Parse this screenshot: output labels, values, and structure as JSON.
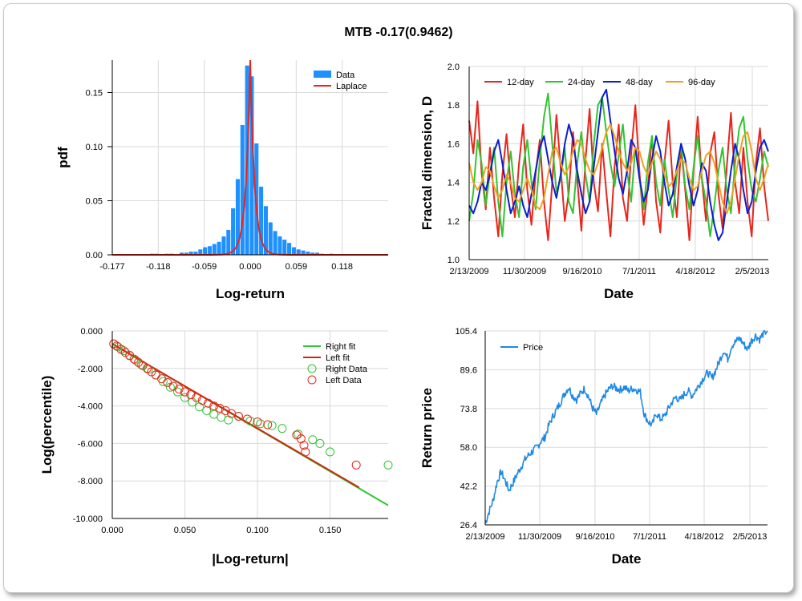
{
  "title": "MTB -0.17(0.9462)",
  "chart_data": [
    {
      "id": "pdf",
      "type": "bar",
      "xlabel": "Log-return",
      "ylabel": "pdf",
      "xlim": [
        -0.177,
        0.177
      ],
      "ylim": [
        0,
        0.18
      ],
      "xticks": [
        "-0.177",
        "-0.118",
        "-0.059",
        "0.000",
        "0.059",
        "0.118"
      ],
      "xtick_values": [
        -0.177,
        -0.118,
        -0.059,
        0.0,
        0.059,
        0.118
      ],
      "yticks": [
        "0.00",
        "0.05",
        "0.10",
        "0.15"
      ],
      "ytick_values": [
        0,
        0.05,
        0.1,
        0.15
      ],
      "legend": [
        "Data",
        "Laplace"
      ],
      "colors": {
        "data": "#1e90ff",
        "laplace": "#e8261c"
      },
      "bars": {
        "x": [
          -0.126,
          -0.12,
          -0.107,
          -0.101,
          -0.088,
          -0.082,
          -0.076,
          -0.07,
          -0.064,
          -0.058,
          -0.052,
          -0.046,
          -0.04,
          -0.034,
          -0.028,
          -0.022,
          -0.016,
          -0.01,
          -0.004,
          0.002,
          0.008,
          0.014,
          0.02,
          0.026,
          0.032,
          0.038,
          0.044,
          0.05,
          0.056,
          0.062,
          0.068,
          0.074,
          0.08,
          0.086,
          0.092,
          0.104
        ],
        "values": [
          0.001,
          0.001,
          0.001,
          0.001,
          0.002,
          0.002,
          0.003,
          0.003,
          0.005,
          0.007,
          0.008,
          0.01,
          0.012,
          0.017,
          0.023,
          0.043,
          0.07,
          0.12,
          0.175,
          0.165,
          0.103,
          0.063,
          0.045,
          0.03,
          0.022,
          0.017,
          0.014,
          0.011,
          0.007,
          0.005,
          0.004,
          0.003,
          0.002,
          0.002,
          0.001,
          0.001
        ],
        "width": 0.0052
      },
      "laplace": {
        "mu": 0.0,
        "peak": 0.18,
        "b": 0.0056
      }
    },
    {
      "id": "fractal",
      "type": "line",
      "xlabel": "Date",
      "ylabel": "Fractal dimension, D",
      "ylim": [
        1.0,
        2.0
      ],
      "xticks": [
        "2/13/2009",
        "11/30/2009",
        "9/16/2010",
        "7/1/2011",
        "4/18/2012",
        "2/5/2013"
      ],
      "yticks": [
        "1.0",
        "1.2",
        "1.4",
        "1.6",
        "1.8",
        "2.0"
      ],
      "ytick_values": [
        1.0,
        1.2,
        1.4,
        1.6,
        1.8,
        2.0
      ],
      "x_range_years": [
        2009.12,
        2013.43
      ],
      "series": [
        {
          "name": "12-day",
          "color": "#e8261c",
          "values": [
            1.72,
            1.55,
            1.82,
            1.45,
            1.26,
            1.58,
            1.32,
            1.12,
            1.44,
            1.65,
            1.38,
            1.22,
            1.5,
            1.7,
            1.36,
            1.18,
            1.45,
            1.62,
            1.3,
            1.1,
            1.4,
            1.75,
            1.48,
            1.2,
            1.35,
            1.66,
            1.42,
            1.15,
            1.52,
            1.78,
            1.4,
            1.25,
            1.6,
            1.35,
            1.12,
            1.48,
            1.7,
            1.32,
            1.2,
            1.55,
            1.8,
            1.45,
            1.18,
            1.38,
            1.64,
            1.3,
            1.14,
            1.5,
            1.72,
            1.4,
            1.22,
            1.58,
            1.36,
            1.1,
            1.46,
            1.74,
            1.42,
            1.2,
            1.55,
            1.66,
            1.34,
            1.16,
            1.48,
            1.76,
            1.4,
            1.24,
            1.58,
            1.3,
            1.12,
            1.5,
            1.68,
            1.38,
            1.2
          ]
        },
        {
          "name": "24-day",
          "color": "#33c433",
          "values": [
            1.2,
            1.35,
            1.62,
            1.5,
            1.28,
            1.45,
            1.58,
            1.3,
            1.12,
            1.4,
            1.56,
            1.34,
            1.22,
            1.48,
            1.62,
            1.4,
            1.26,
            1.52,
            1.74,
            1.86,
            1.6,
            1.35,
            1.42,
            1.58,
            1.3,
            1.24,
            1.5,
            1.66,
            1.44,
            1.3,
            1.6,
            1.8,
            1.84,
            1.66,
            1.5,
            1.38,
            1.54,
            1.7,
            1.46,
            1.3,
            1.58,
            1.42,
            1.26,
            1.5,
            1.64,
            1.4,
            1.28,
            1.52,
            1.36,
            1.22,
            1.44,
            1.6,
            1.38,
            1.26,
            1.48,
            1.64,
            1.42,
            1.3,
            1.12,
            1.28,
            1.46,
            1.58,
            1.36,
            1.24,
            1.5,
            1.68,
            1.74,
            1.52,
            1.36,
            1.3,
            1.42,
            1.56,
            1.48
          ]
        },
        {
          "name": "48-day",
          "color": "#0a1fd0",
          "values": [
            1.28,
            1.24,
            1.3,
            1.4,
            1.36,
            1.44,
            1.56,
            1.62,
            1.5,
            1.36,
            1.24,
            1.3,
            1.38,
            1.28,
            1.22,
            1.34,
            1.46,
            1.58,
            1.64,
            1.52,
            1.4,
            1.32,
            1.44,
            1.6,
            1.7,
            1.62,
            1.46,
            1.34,
            1.24,
            1.3,
            1.48,
            1.66,
            1.84,
            1.88,
            1.72,
            1.56,
            1.42,
            1.34,
            1.46,
            1.62,
            1.58,
            1.42,
            1.3,
            1.36,
            1.52,
            1.64,
            1.56,
            1.4,
            1.28,
            1.34,
            1.48,
            1.6,
            1.52,
            1.38,
            1.28,
            1.36,
            1.5,
            1.46,
            1.3,
            1.18,
            1.1,
            1.14,
            1.3,
            1.46,
            1.6,
            1.52,
            1.36,
            1.24,
            1.3,
            1.46,
            1.58,
            1.62,
            1.56
          ]
        },
        {
          "name": "96-day",
          "color": "#f0a020",
          "values": [
            1.5,
            1.4,
            1.36,
            1.4,
            1.48,
            1.46,
            1.38,
            1.32,
            1.36,
            1.44,
            1.4,
            1.32,
            1.3,
            1.36,
            1.42,
            1.36,
            1.28,
            1.26,
            1.32,
            1.44,
            1.56,
            1.58,
            1.5,
            1.44,
            1.48,
            1.56,
            1.62,
            1.6,
            1.52,
            1.46,
            1.44,
            1.5,
            1.58,
            1.66,
            1.7,
            1.64,
            1.56,
            1.5,
            1.46,
            1.5,
            1.58,
            1.56,
            1.48,
            1.44,
            1.5,
            1.56,
            1.52,
            1.44,
            1.38,
            1.4,
            1.46,
            1.52,
            1.5,
            1.42,
            1.36,
            1.38,
            1.46,
            1.54,
            1.56,
            1.5,
            1.4,
            1.3,
            1.24,
            1.3,
            1.42,
            1.54,
            1.64,
            1.66,
            1.56,
            1.42,
            1.36,
            1.42,
            1.5
          ]
        }
      ]
    },
    {
      "id": "tail",
      "type": "scatter",
      "xlabel": "|Log-return|",
      "ylabel": "Log(percentile)",
      "xlim": [
        0,
        0.19
      ],
      "ylim": [
        -10,
        0
      ],
      "xticks": [
        "0.000",
        "0.050",
        "0.100",
        "0.150"
      ],
      "xtick_values": [
        0,
        0.05,
        0.1,
        0.15
      ],
      "yticks": [
        "0.000",
        "-2.000",
        "-4.000",
        "-6.000",
        "-8.000",
        "-10.000"
      ],
      "ytick_values": [
        0,
        -2,
        -4,
        -6,
        -8,
        -10
      ],
      "legend": [
        "Right fit",
        "Left fit",
        "Right Data",
        "Left Data"
      ],
      "colors": {
        "right": "#33c433",
        "left": "#e8261c",
        "left_fit": "#cc2a10"
      },
      "right_fit": {
        "x": [
          0.0,
          0.19
        ],
        "y": [
          -0.69,
          -9.3
        ]
      },
      "left_fit": {
        "x": [
          0.0,
          0.17
        ],
        "y": [
          -0.69,
          -8.35
        ]
      },
      "right_data": {
        "x": [
          0.001,
          0.004,
          0.008,
          0.012,
          0.016,
          0.02,
          0.025,
          0.03,
          0.035,
          0.04,
          0.045,
          0.05,
          0.055,
          0.06,
          0.065,
          0.07,
          0.075,
          0.08,
          0.087,
          0.095,
          0.102,
          0.11,
          0.117,
          0.128,
          0.138,
          0.143,
          0.15,
          0.19
        ],
        "y": [
          -0.69,
          -0.85,
          -1.05,
          -1.3,
          -1.55,
          -1.8,
          -2.05,
          -2.35,
          -2.7,
          -3.0,
          -3.25,
          -3.55,
          -3.8,
          -4.05,
          -4.25,
          -4.45,
          -4.6,
          -4.75,
          -4.55,
          -4.8,
          -4.95,
          -5.05,
          -5.2,
          -5.5,
          -5.8,
          -6.0,
          -6.45,
          -7.15
        ]
      },
      "left_data": {
        "x": [
          0.001,
          0.003,
          0.006,
          0.009,
          0.012,
          0.015,
          0.018,
          0.021,
          0.024,
          0.027,
          0.03,
          0.034,
          0.038,
          0.042,
          0.046,
          0.05,
          0.054,
          0.058,
          0.062,
          0.066,
          0.07,
          0.074,
          0.078,
          0.082,
          0.087,
          0.093,
          0.1,
          0.107,
          0.127,
          0.13,
          0.132,
          0.133,
          0.168
        ],
        "y": [
          -0.69,
          -0.8,
          -0.98,
          -1.15,
          -1.32,
          -1.5,
          -1.68,
          -1.85,
          -2.0,
          -2.18,
          -2.35,
          -2.55,
          -2.75,
          -2.95,
          -3.1,
          -3.25,
          -3.4,
          -3.55,
          -3.7,
          -3.85,
          -4.0,
          -4.12,
          -4.25,
          -4.4,
          -4.55,
          -4.7,
          -4.85,
          -5.0,
          -5.55,
          -5.75,
          -6.1,
          -6.45,
          -7.15
        ]
      }
    },
    {
      "id": "price",
      "type": "line",
      "xlabel": "Date",
      "ylabel": "Return price",
      "ylim": [
        26.4,
        105.4
      ],
      "xticks": [
        "2/13/2009",
        "11/30/2009",
        "9/16/2010",
        "7/1/2011",
        "4/18/2012",
        "2/5/2013"
      ],
      "yticks": [
        "26.4",
        "42.2",
        "58.0",
        "73.8",
        "89.6",
        "105.4"
      ],
      "ytick_values": [
        26.4,
        42.2,
        58.0,
        73.8,
        89.6,
        105.4
      ],
      "x_range_years": [
        2009.12,
        2013.43
      ],
      "series": [
        {
          "name": "Price",
          "color": "#1e88e5",
          "values": [
            27.0,
            32.0,
            36.5,
            44.0,
            48.0,
            44.5,
            40.5,
            43.5,
            47.0,
            50.0,
            53.0,
            55.0,
            56.5,
            58.0,
            60.5,
            62.0,
            67.0,
            70.5,
            73.5,
            76.5,
            80.0,
            82.5,
            79.0,
            77.5,
            80.0,
            82.0,
            78.5,
            74.0,
            71.5,
            75.5,
            79.0,
            81.5,
            83.0,
            82.0,
            81.5,
            82.5,
            81.0,
            82.0,
            81.5,
            80.5,
            71.5,
            68.5,
            67.0,
            72.0,
            69.5,
            70.5,
            73.5,
            76.5,
            78.5,
            77.0,
            79.5,
            81.0,
            79.0,
            81.5,
            84.0,
            86.5,
            88.5,
            86.0,
            89.5,
            93.5,
            97.5,
            94.0,
            99.5,
            101.0,
            102.5,
            100.0,
            98.0,
            101.5,
            103.5,
            102.0,
            104.5,
            105.5
          ]
        }
      ]
    }
  ]
}
